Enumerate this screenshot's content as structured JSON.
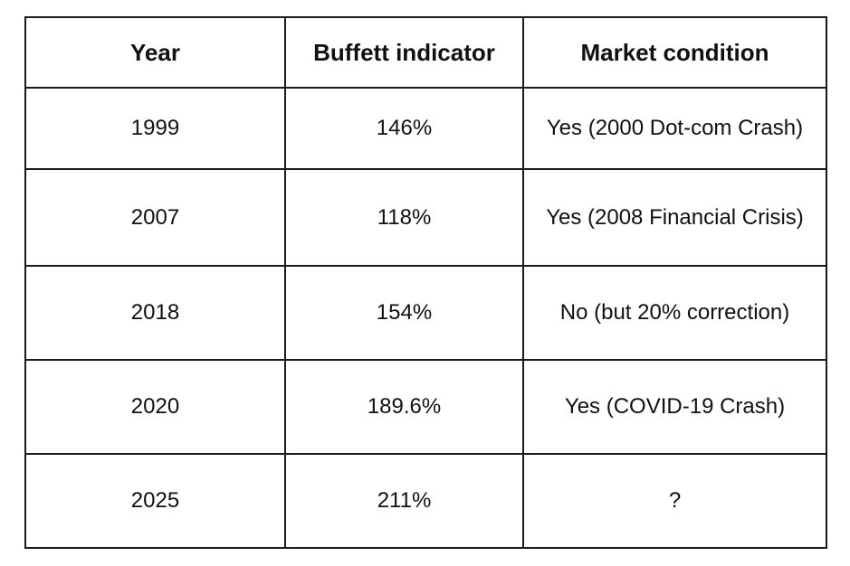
{
  "table": {
    "headers": [
      "Year",
      "Buffett indicator",
      "Market condition"
    ],
    "rows": [
      [
        "1999",
        "146%",
        "Yes (2000 Dot-com Crash)"
      ],
      [
        "2007",
        "118%",
        "Yes (2008 Financial Crisis)"
      ],
      [
        "2018",
        "154%",
        "No (but 20% correction)"
      ],
      [
        "2020",
        "189.6%",
        "Yes (COVID-19 Crash)"
      ],
      [
        "2025",
        "211%",
        "?"
      ]
    ]
  }
}
